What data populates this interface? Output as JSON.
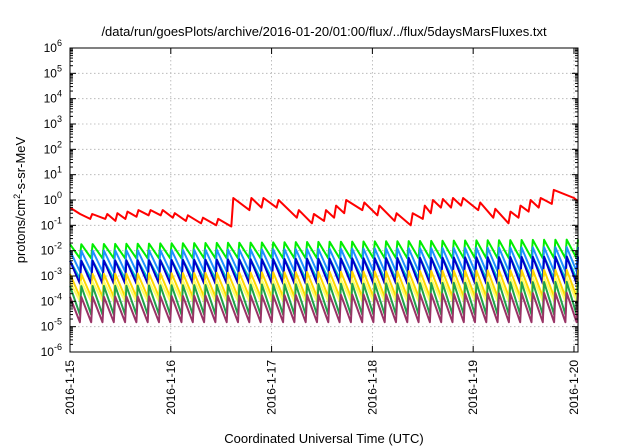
{
  "chart_data": {
    "type": "line",
    "title": "/data/run/goesPlots/archive/2016-01-20/01:00/flux/../flux/5daysMarsFluxes.txt",
    "xlabel": "Coordinated Universal Time (UTC)",
    "ylabel": {
      "pre": "protons/cm",
      "sup": "2",
      "post": "-s-sr-MeV"
    },
    "yscale": "log",
    "ylim": [
      1e-06,
      1000000.0
    ],
    "xlim": [
      0,
      5.04
    ],
    "grid": true,
    "x_tick_labels": [
      "2016-1-15",
      "2016-1-16",
      "2016-1-17",
      "2016-1-18",
      "2016-1-19",
      "2016-1-20"
    ],
    "y_tick_labels": [
      {
        "base": "10",
        "exp": "-6"
      },
      {
        "base": "10",
        "exp": "-5"
      },
      {
        "base": "10",
        "exp": "-4"
      },
      {
        "base": "10",
        "exp": "-3"
      },
      {
        "base": "10",
        "exp": "-2"
      },
      {
        "base": "10",
        "exp": "-1"
      },
      {
        "base": "10",
        "exp": "0"
      },
      {
        "base": "10",
        "exp": "1"
      },
      {
        "base": "10",
        "exp": "2"
      },
      {
        "base": "10",
        "exp": "3"
      },
      {
        "base": "10",
        "exp": "4"
      },
      {
        "base": "10",
        "exp": "5"
      },
      {
        "base": "10",
        "exp": "6"
      }
    ],
    "series": [
      {
        "color": "#ff0000",
        "x": [
          0.0,
          0.1,
          0.2,
          0.22,
          0.35,
          0.37,
          0.45,
          0.47,
          0.55,
          0.57,
          0.66,
          0.68,
          0.78,
          0.8,
          0.9,
          0.92,
          1.02,
          1.04,
          1.15,
          1.17,
          1.3,
          1.32,
          1.45,
          1.47,
          1.6,
          1.62,
          1.78,
          1.8,
          1.9,
          1.92,
          2.05,
          2.07,
          2.25,
          2.27,
          2.4,
          2.42,
          2.52,
          2.54,
          2.62,
          2.64,
          2.72,
          2.74,
          2.9,
          2.92,
          3.05,
          3.07,
          3.22,
          3.24,
          3.38,
          3.4,
          3.5,
          3.52,
          3.58,
          3.6,
          3.68,
          3.7,
          3.78,
          3.8,
          3.88,
          3.9,
          4.05,
          4.07,
          4.2,
          4.22,
          4.35,
          4.37,
          4.45,
          4.47,
          4.55,
          4.57,
          4.65,
          4.67,
          4.78,
          4.8,
          5.0,
          5.04
        ],
        "y": [
          0.5,
          0.28,
          0.18,
          0.28,
          0.18,
          0.28,
          0.15,
          0.3,
          0.18,
          0.35,
          0.22,
          0.4,
          0.25,
          0.4,
          0.25,
          0.4,
          0.2,
          0.3,
          0.15,
          0.25,
          0.12,
          0.2,
          0.1,
          0.18,
          0.09,
          1.2,
          0.4,
          1.2,
          0.5,
          1.2,
          0.5,
          1.0,
          0.2,
          0.4,
          0.12,
          0.28,
          0.15,
          0.4,
          0.2,
          0.6,
          0.3,
          1.0,
          0.4,
          0.8,
          0.25,
          0.6,
          0.15,
          0.3,
          0.1,
          0.3,
          0.18,
          0.6,
          0.3,
          1.0,
          0.5,
          1.1,
          0.5,
          1.2,
          0.6,
          1.2,
          0.4,
          0.8,
          0.2,
          0.45,
          0.12,
          0.35,
          0.2,
          0.6,
          0.35,
          1.0,
          0.5,
          1.2,
          0.7,
          2.5,
          1.2,
          0.9
        ]
      },
      {
        "color": "#00ee00",
        "phases": 45,
        "x_end": 5.04,
        "y_low": 0.005,
        "y_high": 0.018,
        "y_high_end": 0.028
      },
      {
        "color": "#1e90ff",
        "phases": 45,
        "x_end": 5.04,
        "y_low": 0.0015,
        "y_high": 0.01,
        "y_high_end": 0.014
      },
      {
        "color": "#00c8c8",
        "phases": 45,
        "x_end": 5.04,
        "y_low": 0.0008,
        "y_high": 0.004,
        "y_high_end": 0.006
      },
      {
        "color": "#0000cc",
        "phases": 45,
        "x_end": 5.04,
        "y_low": 0.0005,
        "y_high": 0.004,
        "y_high_end": 0.006
      },
      {
        "color": "#ffd700",
        "phases": 45,
        "x_end": 5.04,
        "y_low": 0.00015,
        "y_high": 0.0012,
        "y_high_end": 0.0018
      },
      {
        "color": "#ffff66",
        "phases": 45,
        "x_end": 5.04,
        "y_low": 0.0001,
        "y_high": 0.0006,
        "y_high_end": 0.0009
      },
      {
        "color": "#1fa34a",
        "phases": 45,
        "x_end": 5.04,
        "y_low": 3e-05,
        "y_high": 0.0004,
        "y_high_end": 0.0006
      },
      {
        "color": "#993366",
        "phases": 45,
        "x_end": 5.04,
        "y_low": 1.5e-05,
        "y_high": 0.00015,
        "y_high_end": 0.00022
      }
    ]
  }
}
